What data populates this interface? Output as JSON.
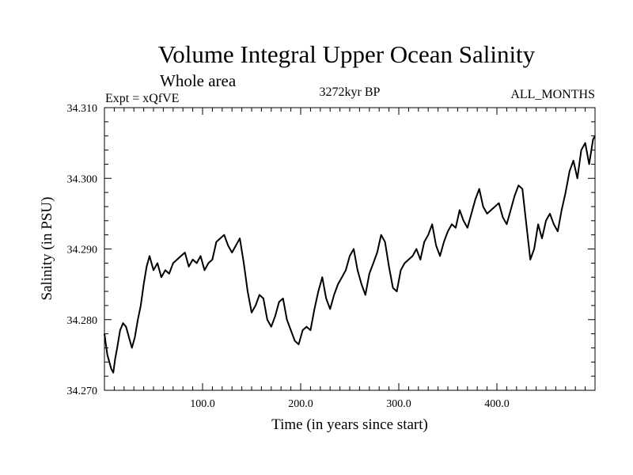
{
  "chart_data": {
    "type": "line",
    "title": "Volume Integral Upper Ocean Salinity",
    "subtitle": "Whole area",
    "left_note": "Expt = xQfVE",
    "center_note": "3272kyr BP",
    "right_note": "ALL_MONTHS",
    "xlabel": "Time (in years since start)",
    "ylabel": "Salinity (in PSU)",
    "xlim": [
      0,
      500
    ],
    "ylim": [
      34.27,
      34.31
    ],
    "xticks": [
      100,
      200,
      300,
      400
    ],
    "xtick_labels": [
      "100.0",
      "200.0",
      "300.0",
      "400.0"
    ],
    "yticks": [
      34.27,
      34.28,
      34.29,
      34.3,
      34.31
    ],
    "ytick_labels": [
      "34.270",
      "34.280",
      "34.290",
      "34.300",
      "34.310"
    ],
    "grid": false,
    "series": [
      {
        "name": "Salinity",
        "x": [
          0,
          3,
          5,
          7,
          9,
          11,
          13,
          16,
          19,
          22,
          25,
          28,
          31,
          34,
          37,
          40,
          43,
          46,
          50,
          54,
          58,
          62,
          66,
          70,
          74,
          78,
          82,
          86,
          90,
          94,
          98,
          102,
          106,
          110,
          114,
          118,
          122,
          126,
          130,
          134,
          138,
          142,
          146,
          150,
          154,
          158,
          162,
          166,
          170,
          174,
          178,
          182,
          186,
          190,
          194,
          198,
          202,
          206,
          210,
          214,
          218,
          222,
          226,
          230,
          234,
          238,
          242,
          246,
          250,
          254,
          258,
          262,
          266,
          270,
          274,
          278,
          282,
          286,
          290,
          294,
          298,
          302,
          306,
          310,
          314,
          318,
          322,
          326,
          330,
          334,
          338,
          342,
          346,
          350,
          354,
          358,
          362,
          366,
          370,
          374,
          378,
          382,
          386,
          390,
          394,
          398,
          402,
          406,
          410,
          414,
          418,
          422,
          426,
          430,
          434,
          438,
          442,
          446,
          450,
          454,
          458,
          462,
          466,
          470,
          474,
          478,
          482,
          486,
          490,
          494,
          498,
          500
        ],
        "values": [
          34.278,
          34.275,
          34.274,
          34.273,
          34.2725,
          34.2745,
          34.276,
          34.2785,
          34.2795,
          34.279,
          34.2775,
          34.276,
          34.2775,
          34.28,
          34.282,
          34.285,
          34.2875,
          34.289,
          34.287,
          34.288,
          34.286,
          34.287,
          34.2865,
          34.288,
          34.2885,
          34.289,
          34.2895,
          34.2875,
          34.2885,
          34.288,
          34.289,
          34.287,
          34.288,
          34.2885,
          34.291,
          34.2915,
          34.292,
          34.2905,
          34.2895,
          34.2905,
          34.2915,
          34.288,
          34.284,
          34.281,
          34.282,
          34.2835,
          34.283,
          34.28,
          34.279,
          34.2805,
          34.2825,
          34.283,
          34.28,
          34.2785,
          34.277,
          34.2765,
          34.2785,
          34.279,
          34.2785,
          34.2815,
          34.284,
          34.286,
          34.283,
          34.2815,
          34.2835,
          34.285,
          34.286,
          34.287,
          34.289,
          34.29,
          34.287,
          34.285,
          34.2835,
          34.2865,
          34.288,
          34.2895,
          34.292,
          34.291,
          34.2875,
          34.2845,
          34.284,
          34.287,
          34.288,
          34.2885,
          34.289,
          34.29,
          34.2885,
          34.291,
          34.292,
          34.2935,
          34.2905,
          34.289,
          34.291,
          34.2925,
          34.2935,
          34.293,
          34.2955,
          34.294,
          34.293,
          34.295,
          34.297,
          34.2985,
          34.296,
          34.295,
          34.2955,
          34.296,
          34.2965,
          34.2945,
          34.2935,
          34.2955,
          34.2975,
          34.299,
          34.2985,
          34.2935,
          34.2885,
          34.29,
          34.2935,
          34.2915,
          34.294,
          34.295,
          34.2935,
          34.2925,
          34.2955,
          34.298,
          34.301,
          34.3025,
          34.3,
          34.304,
          34.305,
          34.302,
          34.3055,
          34.306
        ]
      }
    ]
  }
}
